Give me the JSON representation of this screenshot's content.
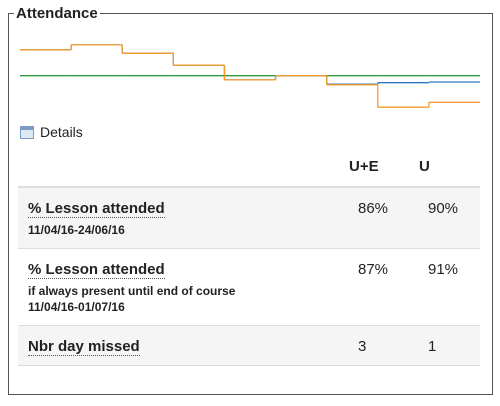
{
  "legend": "Attendance",
  "chart_data": {
    "type": "step",
    "categories": [
      null,
      null,
      null,
      null,
      null,
      null,
      null,
      null,
      null
    ],
    "ylim": [
      0,
      100
    ],
    "series": [
      {
        "color": "#f39c2b",
        "values": [
          86,
          93,
          81,
          64,
          43,
          49,
          36,
          4,
          11
        ]
      },
      {
        "color": "#2e7bc4",
        "values": [
          86,
          93,
          81,
          64,
          43,
          49,
          37,
          39,
          40
        ]
      },
      {
        "color": "#2e9a3e",
        "values": [
          49,
          49,
          49,
          49,
          49,
          49,
          49,
          49,
          49
        ]
      }
    ]
  },
  "details": "Details",
  "table": {
    "header": [
      "U+E",
      "U"
    ],
    "rows": [
      {
        "label": "% Lesson attended",
        "sublabels": [
          "11/04/16-24/06/16"
        ],
        "values": [
          "86%",
          "90%"
        ]
      },
      {
        "label": "% Lesson attended",
        "sublabels": [
          "if always present until end of course",
          "11/04/16-01/07/16"
        ],
        "values": [
          "87%",
          "91%"
        ]
      },
      {
        "label": "Nbr day missed",
        "sublabels": [],
        "values": [
          "3",
          "1"
        ]
      }
    ]
  }
}
